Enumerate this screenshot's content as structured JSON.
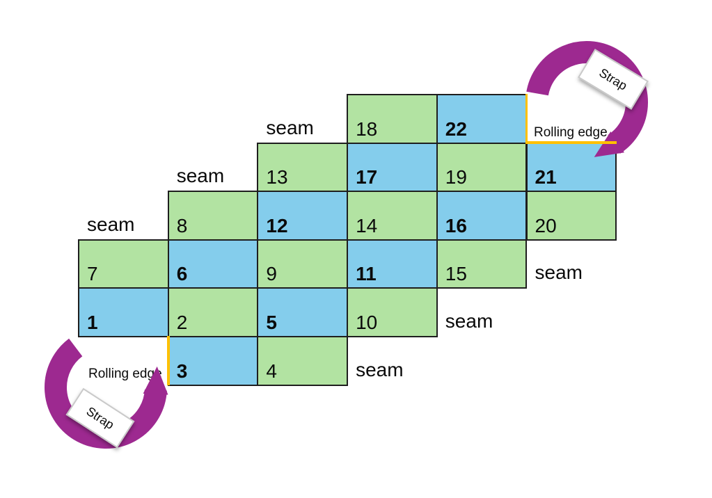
{
  "diagram": {
    "title": "rolling-pattern-diagram",
    "colors": {
      "green": "#B2E3A2",
      "blue": "#84CDEC",
      "purple": "#9D2990",
      "yellow": "#FFC000",
      "cell_border": "#1E1E1E"
    },
    "cells": [
      {
        "number": "1",
        "row": 4,
        "col": 0,
        "color": "blue",
        "bold": true
      },
      {
        "number": "2",
        "row": 4,
        "col": 1,
        "color": "green",
        "bold": false
      },
      {
        "number": "3",
        "row": 5,
        "col": 1,
        "color": "blue",
        "bold": true
      },
      {
        "number": "4",
        "row": 5,
        "col": 2,
        "color": "green",
        "bold": false
      },
      {
        "number": "5",
        "row": 4,
        "col": 2,
        "color": "blue",
        "bold": true
      },
      {
        "number": "6",
        "row": 3,
        "col": 1,
        "color": "blue",
        "bold": true
      },
      {
        "number": "7",
        "row": 3,
        "col": 0,
        "color": "green",
        "bold": false
      },
      {
        "number": "8",
        "row": 2,
        "col": 1,
        "color": "green",
        "bold": false
      },
      {
        "number": "9",
        "row": 3,
        "col": 2,
        "color": "green",
        "bold": false
      },
      {
        "number": "10",
        "row": 4,
        "col": 3,
        "color": "green",
        "bold": false
      },
      {
        "number": "11",
        "row": 3,
        "col": 3,
        "color": "blue",
        "bold": true
      },
      {
        "number": "12",
        "row": 2,
        "col": 2,
        "color": "blue",
        "bold": true
      },
      {
        "number": "13",
        "row": 1,
        "col": 2,
        "color": "green",
        "bold": false
      },
      {
        "number": "14",
        "row": 2,
        "col": 3,
        "color": "green",
        "bold": false
      },
      {
        "number": "15",
        "row": 3,
        "col": 4,
        "color": "green",
        "bold": false
      },
      {
        "number": "16",
        "row": 2,
        "col": 4,
        "color": "blue",
        "bold": true
      },
      {
        "number": "17",
        "row": 1,
        "col": 3,
        "color": "blue",
        "bold": true
      },
      {
        "number": "18",
        "row": 0,
        "col": 3,
        "color": "green",
        "bold": false
      },
      {
        "number": "19",
        "row": 1,
        "col": 4,
        "color": "green",
        "bold": false
      },
      {
        "number": "20",
        "row": 2,
        "col": 5,
        "color": "green",
        "bold": false
      },
      {
        "number": "21",
        "row": 1,
        "col": 5,
        "color": "blue",
        "bold": true
      },
      {
        "number": "22",
        "row": 0,
        "col": 4,
        "color": "blue",
        "bold": true
      }
    ],
    "seams": [
      {
        "label": "seam",
        "row": 0,
        "col": 2
      },
      {
        "label": "seam",
        "row": 1,
        "col": 1
      },
      {
        "label": "seam",
        "row": 2,
        "col": 0
      },
      {
        "label": "seam",
        "row": 3,
        "col": 5
      },
      {
        "label": "seam",
        "row": 4,
        "col": 4
      },
      {
        "label": "seam",
        "row": 5,
        "col": 3
      }
    ],
    "rolling_edges": [
      {
        "label": "Rolling edge",
        "position": "top-right"
      },
      {
        "label": "Rolling edge",
        "position": "bottom-left"
      }
    ],
    "straps": [
      {
        "label": "Strap",
        "position": "top-right"
      },
      {
        "label": "Strap",
        "position": "bottom-left"
      }
    ]
  }
}
